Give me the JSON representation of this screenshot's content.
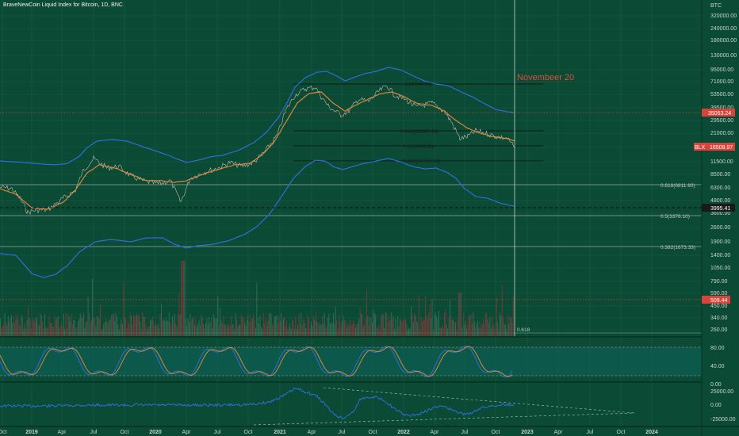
{
  "header": {
    "title": "BraveNewCoin Liquid Index for Bitcoin, 1D, BNC"
  },
  "colors": {
    "background": "#0b4a35",
    "band": "#2d6fd6",
    "ma": "#d9873a",
    "price": "#b86b6b",
    "annotation": "#e04a3a"
  },
  "annotation": {
    "text": "Novembeer 20"
  },
  "right_axis": {
    "currency": "BTC",
    "ticks": [
      "320000.00",
      "240000.00",
      "180000.00",
      "130000.00",
      "95000.00",
      "71000.00",
      "53500.00",
      "39500.00",
      "29500.00",
      "21000.00",
      "15500.00",
      "11500.00",
      "8500.00",
      "6300.00",
      "4800.00",
      "3600.00",
      "2600.00",
      "1900.00",
      "1400.00",
      "1050.00",
      "790.00",
      "590.00",
      "450.00",
      "340.00",
      "260.00"
    ],
    "price_tags": [
      {
        "label": "35053.24",
        "color": "#d9433a"
      },
      {
        "label": "16508.97",
        "color": "#d9433a",
        "prefix": "BLX"
      },
      {
        "label": "3995.41",
        "color": "#1a1a1a"
      },
      {
        "label": "509.44",
        "color": "#d9433a"
      }
    ],
    "stoch_ticks": [
      "80.00",
      "40.00",
      "0.00"
    ],
    "osc_ticks": [
      "25000.00",
      "0.00",
      "-25000.00"
    ]
  },
  "fib_levels": [
    {
      "label": "1(66946.01)"
    },
    {
      "label": "0.618(32895.45)"
    },
    {
      "label": "0.5(18431.30)"
    },
    {
      "label": "0.382(11795.91)"
    },
    {
      "label": "0.618(6811.60)"
    },
    {
      "label": "0.5(3376.10)"
    },
    {
      "label": "0.382(1673.33)"
    },
    {
      "label": "0.618"
    }
  ],
  "time_axis": {
    "labels": [
      "Oct",
      "2019",
      "Apr",
      "Jul",
      "Oct",
      "2020",
      "Apr",
      "Jul",
      "Oct",
      "2021",
      "Apr",
      "Jul",
      "Oct",
      "2022",
      "Apr",
      "Jul",
      "Oct",
      "2023",
      "Apr",
      "Jul",
      "Oct",
      "2024"
    ]
  }
}
